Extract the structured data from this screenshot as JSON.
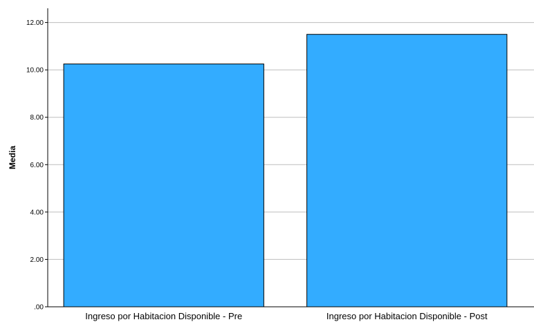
{
  "chart_data": {
    "type": "bar",
    "categories": [
      "Ingreso por Habitacion Disponible - Pre",
      "Ingreso por Habitacion Disponible - Post"
    ],
    "values": [
      10.25,
      11.5
    ],
    "title": "",
    "xlabel": "",
    "ylabel": "Media",
    "ylim": [
      0,
      12.6
    ],
    "yticks": [
      0,
      2,
      4,
      6,
      8,
      10,
      12
    ],
    "ytick_labels": [
      ".00",
      "2.00",
      "4.00",
      "6.00",
      "8.00",
      "10.00",
      "12.00"
    ],
    "grid": true,
    "legend": "none",
    "colors": {
      "bar_fill": "#33acff",
      "bar_stroke": "#000000",
      "grid": "#bdbdbd",
      "background": "#ffffff"
    }
  }
}
